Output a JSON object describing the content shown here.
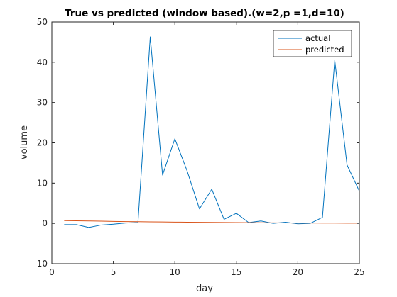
{
  "chart_data": {
    "type": "line",
    "title": "True vs predicted (window based).(w=2,p =1,d=10)",
    "xlabel": "day",
    "ylabel": "volume",
    "xlim": [
      0,
      25
    ],
    "ylim": [
      -10,
      50
    ],
    "xticks": [
      0,
      5,
      10,
      15,
      20,
      25
    ],
    "yticks": [
      -10,
      0,
      10,
      20,
      30,
      40,
      50
    ],
    "grid": false,
    "legend_position": "top-right",
    "series": [
      {
        "name": "actual",
        "color": "#0072BD",
        "x": [
          1,
          2,
          3,
          4,
          5,
          6,
          7,
          8,
          9,
          10,
          11,
          12,
          13,
          14,
          15,
          16,
          17,
          18,
          19,
          20,
          21,
          22,
          23,
          24,
          25
        ],
        "y": [
          -0.3,
          -0.3,
          -1.0,
          -0.4,
          -0.2,
          0.1,
          0.2,
          46.3,
          12.0,
          21.0,
          13.0,
          3.6,
          8.5,
          1.0,
          2.5,
          0.2,
          0.6,
          0.0,
          0.3,
          -0.1,
          0.0,
          1.5,
          40.5,
          14.5,
          8.0
        ]
      },
      {
        "name": "predicted",
        "color": "#D95319",
        "x": [
          1,
          2,
          3,
          4,
          5,
          6,
          7,
          8,
          9,
          10,
          11,
          12,
          13,
          14,
          15,
          16,
          17,
          18,
          19,
          20,
          21,
          22,
          23,
          24,
          25
        ],
        "y": [
          0.7,
          0.65,
          0.6,
          0.55,
          0.5,
          0.45,
          0.42,
          0.38,
          0.35,
          0.32,
          0.3,
          0.27,
          0.24,
          0.22,
          0.2,
          0.18,
          0.16,
          0.14,
          0.12,
          0.1,
          0.09,
          0.08,
          0.07,
          0.06,
          0.05
        ]
      }
    ]
  }
}
